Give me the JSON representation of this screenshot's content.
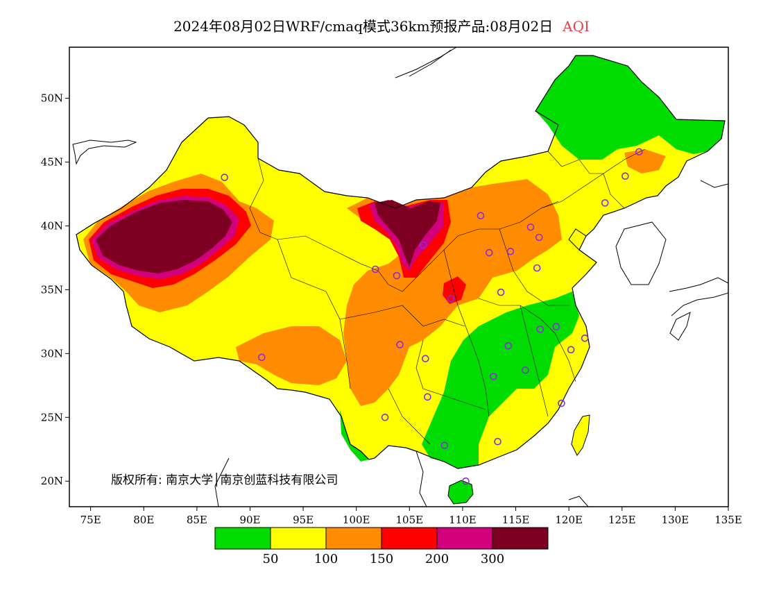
{
  "title": {
    "text": "2024年08月02日WRF/cmaq模式36km预报产品:08月02日",
    "variable": "AQI",
    "variable_color": "#e8404a"
  },
  "axes": {
    "x_ticks": [
      "75E",
      "80E",
      "85E",
      "90E",
      "95E",
      "100E",
      "105E",
      "110E",
      "115E",
      "120E",
      "125E",
      "130E",
      "135E"
    ],
    "y_ticks": [
      "20N",
      "25N",
      "30N",
      "35N",
      "40N",
      "45N",
      "50N"
    ],
    "lon_range": [
      73,
      135
    ],
    "lat_range": [
      18,
      54
    ]
  },
  "copyright": "版权所有: 南京大学│南京创蓝科技有限公司",
  "legend": {
    "colors": [
      "#00dc00",
      "#ffff00",
      "#ff8c00",
      "#ff0000",
      "#d2007d",
      "#7d0023"
    ],
    "breaks": [
      "50",
      "100",
      "150",
      "200",
      "300"
    ]
  },
  "stations": [
    {
      "lon": 87.6,
      "lat": 43.8
    },
    {
      "lon": 91.1,
      "lat": 29.7
    },
    {
      "lon": 101.8,
      "lat": 36.6
    },
    {
      "lon": 103.8,
      "lat": 36.1
    },
    {
      "lon": 106.3,
      "lat": 38.5
    },
    {
      "lon": 104.1,
      "lat": 30.7
    },
    {
      "lon": 106.5,
      "lat": 29.6
    },
    {
      "lon": 106.7,
      "lat": 26.6
    },
    {
      "lon": 102.7,
      "lat": 25.0
    },
    {
      "lon": 108.9,
      "lat": 34.3
    },
    {
      "lon": 111.7,
      "lat": 40.8
    },
    {
      "lon": 112.5,
      "lat": 37.9
    },
    {
      "lon": 114.5,
      "lat": 38.0
    },
    {
      "lon": 116.4,
      "lat": 39.9
    },
    {
      "lon": 117.2,
      "lat": 39.1
    },
    {
      "lon": 117.0,
      "lat": 36.7
    },
    {
      "lon": 113.6,
      "lat": 34.8
    },
    {
      "lon": 114.3,
      "lat": 30.6
    },
    {
      "lon": 117.3,
      "lat": 31.9
    },
    {
      "lon": 118.8,
      "lat": 32.1
    },
    {
      "lon": 121.5,
      "lat": 31.2
    },
    {
      "lon": 120.2,
      "lat": 30.3
    },
    {
      "lon": 115.9,
      "lat": 28.7
    },
    {
      "lon": 112.9,
      "lat": 28.2
    },
    {
      "lon": 119.3,
      "lat": 26.1
    },
    {
      "lon": 113.3,
      "lat": 23.1
    },
    {
      "lon": 108.3,
      "lat": 22.8
    },
    {
      "lon": 110.3,
      "lat": 20.0
    },
    {
      "lon": 123.4,
      "lat": 41.8
    },
    {
      "lon": 125.3,
      "lat": 43.9
    },
    {
      "lon": 126.6,
      "lat": 45.8
    }
  ]
}
